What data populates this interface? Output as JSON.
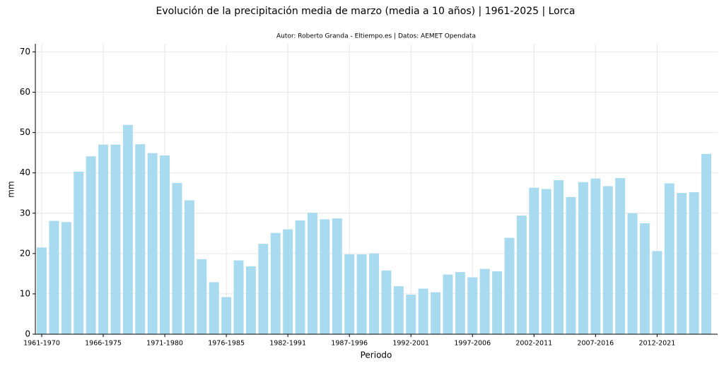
{
  "chart_data": {
    "type": "bar",
    "title": "Evolución de la precipitación media de marzo (media a 10 años) | 1961-2025 | Lorca",
    "subtitle": "Autor: Roberto Granda - Eltiempo.es | Datos: AEMET Opendata",
    "x_label": "Periodo",
    "y_label": "mm",
    "categories": [
      "1961-1970",
      null,
      null,
      null,
      null,
      "1966-1975",
      null,
      null,
      null,
      null,
      "1971-1980",
      null,
      null,
      null,
      null,
      "1976-1985",
      null,
      null,
      null,
      null,
      "1982-1991",
      null,
      null,
      null,
      null,
      "1987-1996",
      null,
      null,
      null,
      null,
      "1992-2001",
      null,
      null,
      null,
      null,
      "1997-2006",
      null,
      null,
      null,
      null,
      "2002-2011",
      null,
      null,
      null,
      null,
      "2007-2016",
      null,
      null,
      null,
      null,
      "2012-2021",
      null,
      null,
      null,
      null
    ],
    "values": [
      21.5,
      28.1,
      27.8,
      40.3,
      44.1,
      47,
      47,
      51.9,
      47.1,
      44.9,
      44.3,
      37.5,
      33.2,
      18.6,
      12.9,
      9.2,
      18.3,
      16.8,
      22.4,
      25.1,
      26,
      28.2,
      30.1,
      28.5,
      28.7,
      19.8,
      19.8,
      20,
      15.8,
      11.9,
      9.8,
      11.3,
      10.4,
      14.8,
      15.4,
      14.1,
      16.2,
      15.6,
      23.9,
      29.4,
      36.3,
      36,
      38.2,
      34,
      37.7,
      38.6,
      36.7,
      38.7,
      30,
      27.5,
      20.6,
      37.4,
      35,
      35.2,
      44.7
    ],
    "color": "#a8daf0",
    "ylim": [
      0,
      72
    ],
    "yticks": [
      0,
      10,
      20,
      30,
      40,
      50,
      60,
      70
    ],
    "grid": true
  }
}
